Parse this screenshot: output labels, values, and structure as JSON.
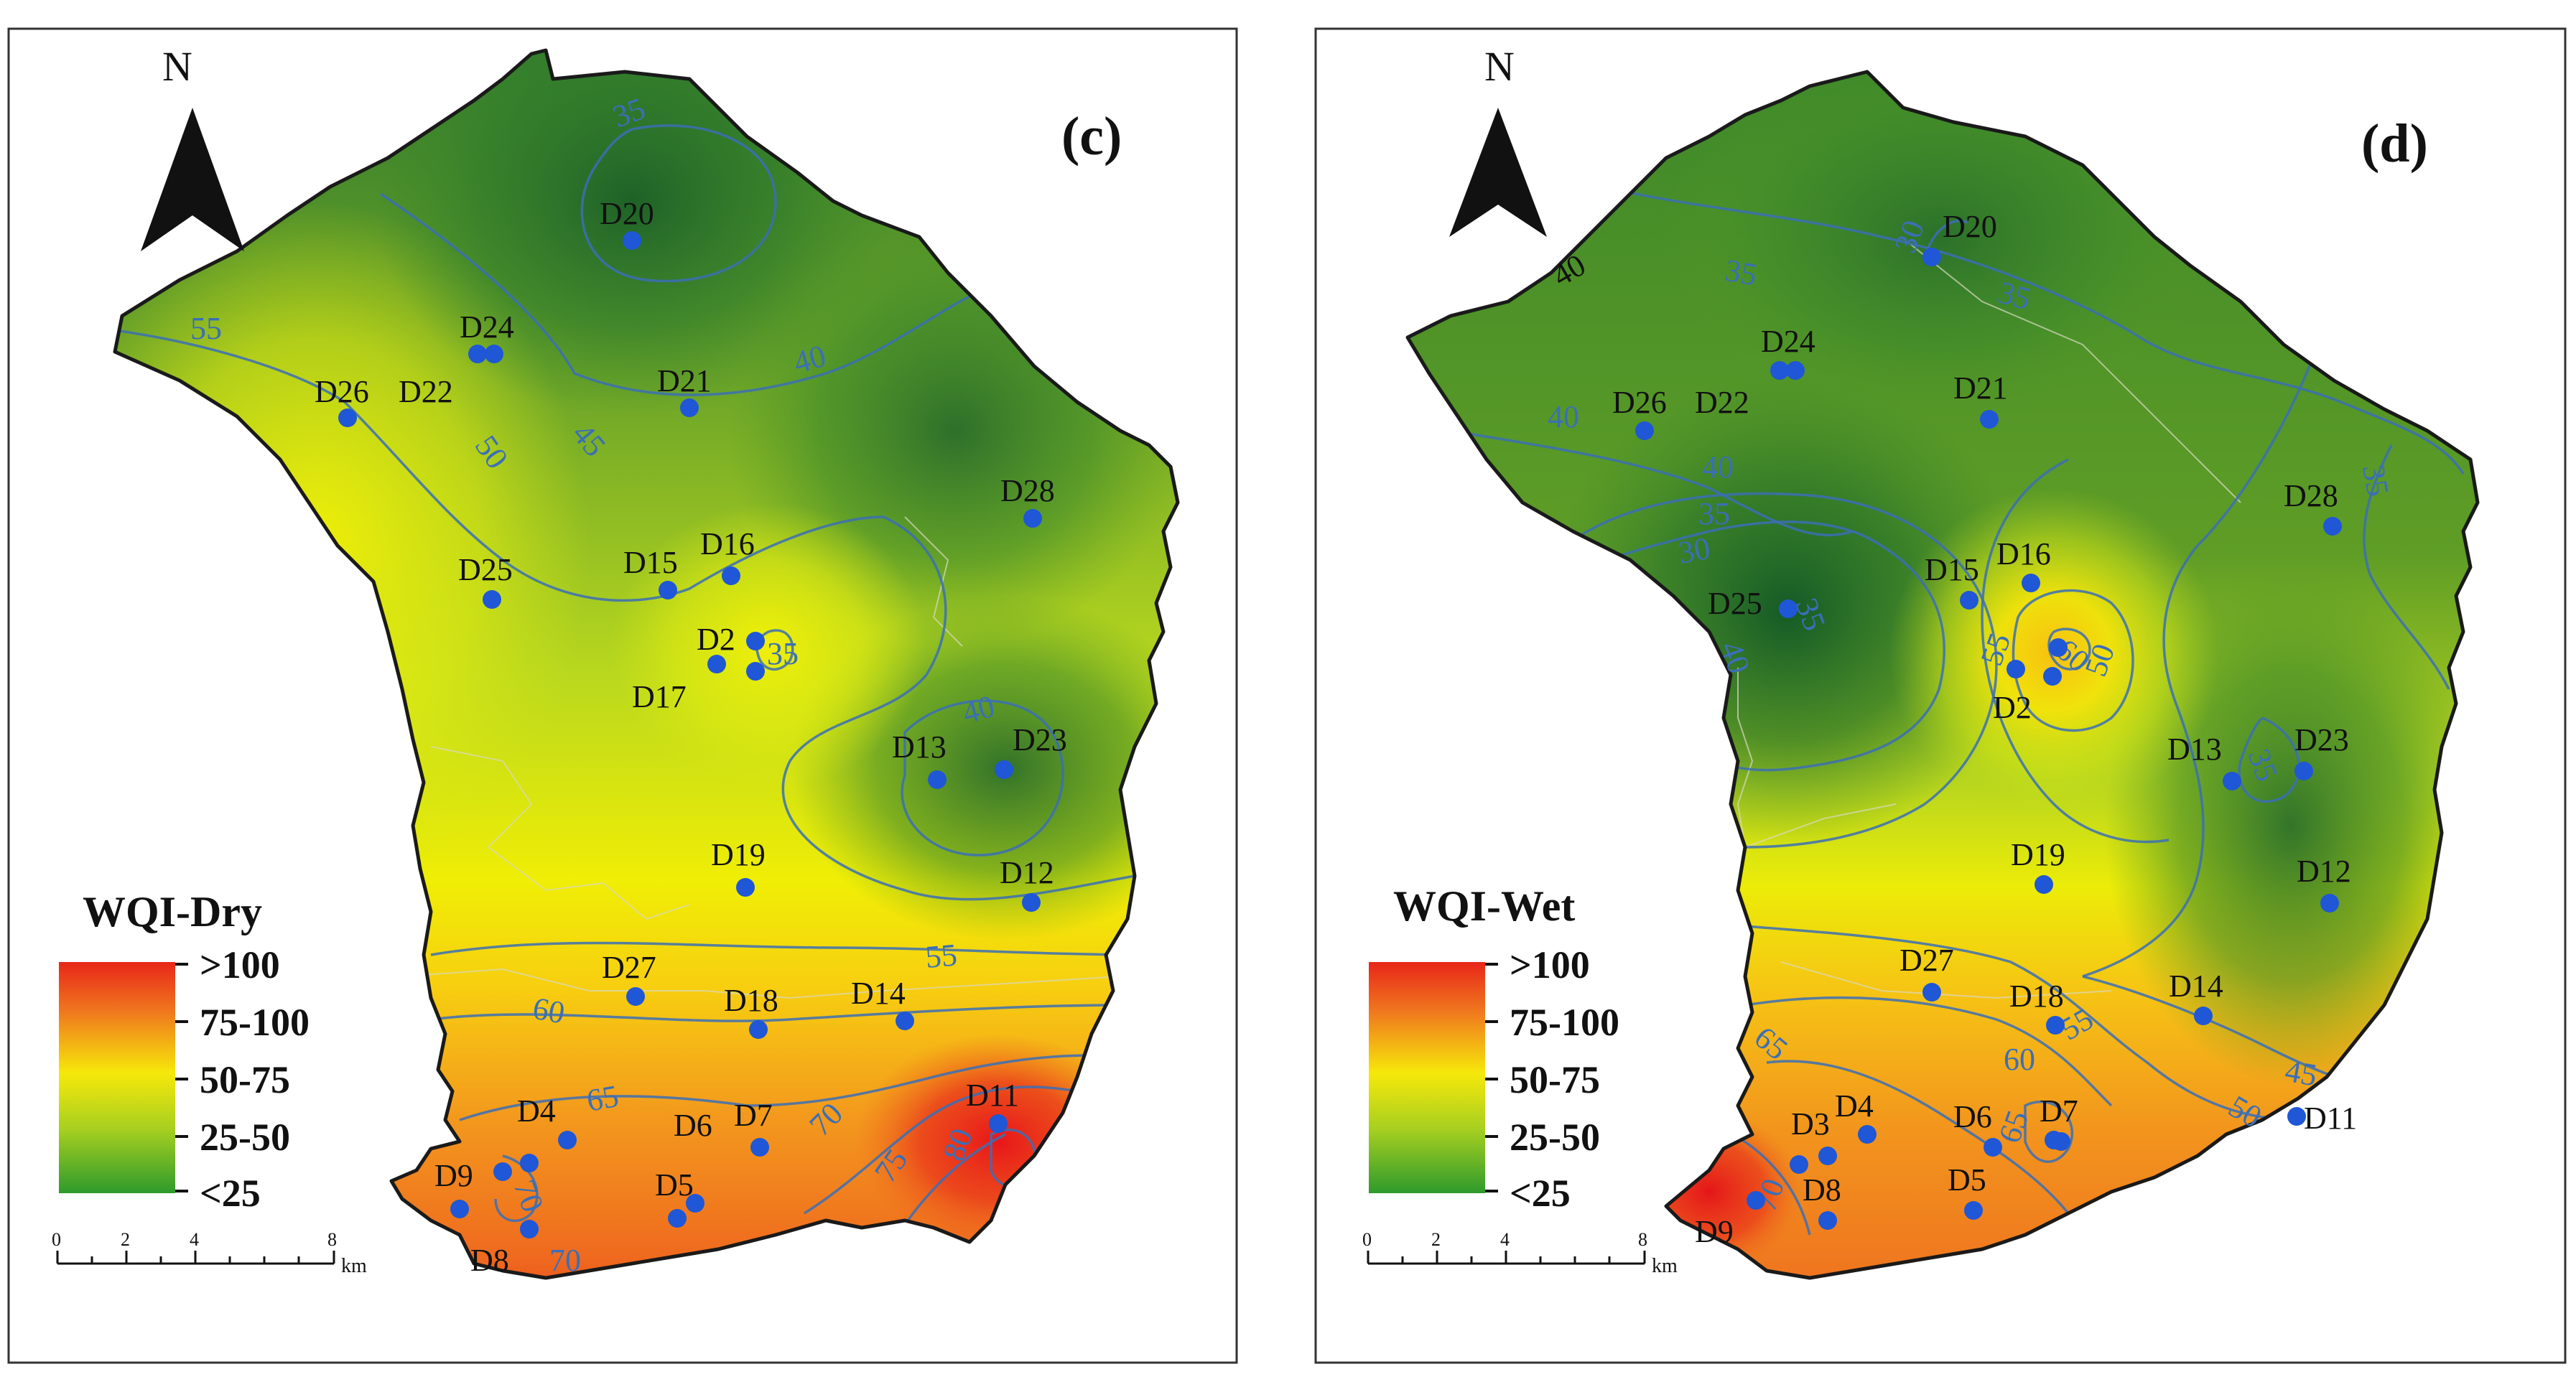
{
  "colors": {
    "green_dark": "#1f6b2a",
    "green": "#5f9c25",
    "yellow_green": "#c6dc1c",
    "yellow": "#f2f000",
    "orange": "#f08a1e",
    "red": "#e8261a",
    "contour_blue": "#3b6fb6",
    "site_blue": "#1f57d6"
  },
  "north_arrow": {
    "label": "N",
    "icon": "north-arrow-icon"
  },
  "legend": {
    "classes": [
      ">100",
      "75-100",
      "50-75",
      "25-50",
      "<25"
    ]
  },
  "scale_bar": {
    "ticks": [
      "0",
      "2",
      "4",
      "8"
    ],
    "unit": "km"
  },
  "panels": [
    {
      "id": "c",
      "label": "(c)",
      "legend_title": "WQI-Dry",
      "sites": [
        {
          "name": "D20"
        },
        {
          "name": "D24"
        },
        {
          "name": "D21"
        },
        {
          "name": "D26"
        },
        {
          "name": "D22"
        },
        {
          "name": "D28"
        },
        {
          "name": "D15"
        },
        {
          "name": "D16"
        },
        {
          "name": "D25"
        },
        {
          "name": "D2"
        },
        {
          "name": "D17"
        },
        {
          "name": "D13"
        },
        {
          "name": "D23"
        },
        {
          "name": "D19"
        },
        {
          "name": "D12"
        },
        {
          "name": "D27"
        },
        {
          "name": "D18"
        },
        {
          "name": "D14"
        },
        {
          "name": "D4"
        },
        {
          "name": "D6"
        },
        {
          "name": "D7"
        },
        {
          "name": "D11"
        },
        {
          "name": "D9"
        },
        {
          "name": "D5"
        },
        {
          "name": "D8"
        }
      ],
      "contour_values": [
        "35",
        "55",
        "50",
        "45",
        "40",
        "40",
        "35",
        "60",
        "55",
        "65",
        "70",
        "70",
        "75",
        "80",
        "70"
      ]
    },
    {
      "id": "d",
      "label": "(d)",
      "legend_title": "WQI-Wet",
      "sites": [
        {
          "name": "D20"
        },
        {
          "name": "D24"
        },
        {
          "name": "D21"
        },
        {
          "name": "D26"
        },
        {
          "name": "D22"
        },
        {
          "name": "D28"
        },
        {
          "name": "D15"
        },
        {
          "name": "D16"
        },
        {
          "name": "D25"
        },
        {
          "name": "D2"
        },
        {
          "name": "D13"
        },
        {
          "name": "D23"
        },
        {
          "name": "D19"
        },
        {
          "name": "D12"
        },
        {
          "name": "D27"
        },
        {
          "name": "D18"
        },
        {
          "name": "D14"
        },
        {
          "name": "D4"
        },
        {
          "name": "D3"
        },
        {
          "name": "D6"
        },
        {
          "name": "D7"
        },
        {
          "name": "D8"
        },
        {
          "name": "D5"
        },
        {
          "name": "D9"
        },
        {
          "name": "D11"
        }
      ],
      "contour_values": [
        "40",
        "30",
        "35",
        "40",
        "40",
        "35",
        "30",
        "35",
        "35",
        "40",
        "35",
        "55",
        "60",
        "50",
        "50",
        "45",
        "35",
        "65",
        "60",
        "55",
        "65",
        "70"
      ]
    }
  ]
}
